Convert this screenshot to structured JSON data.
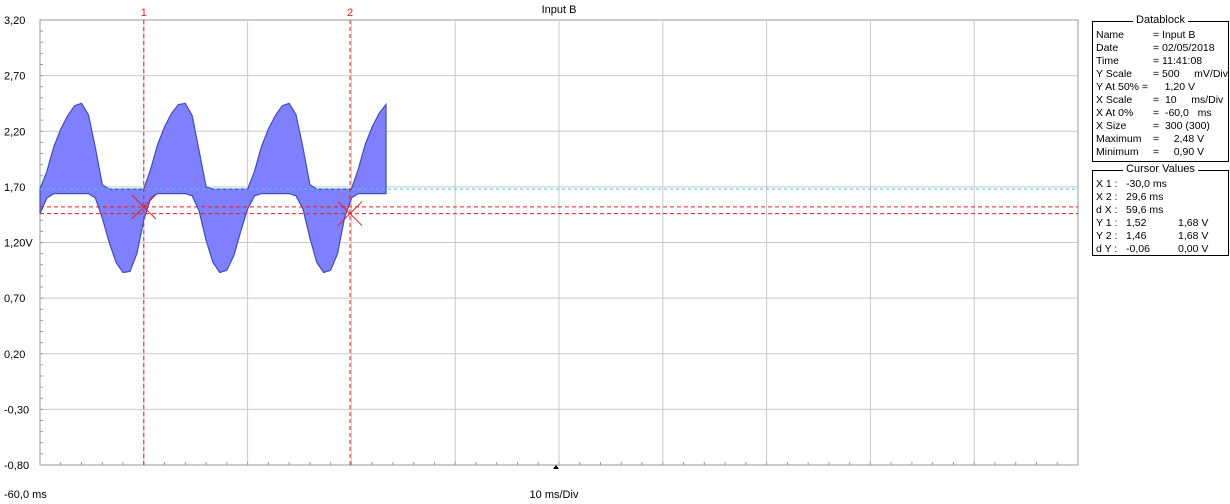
{
  "chart_data": {
    "type": "line",
    "title": "Input B",
    "ylim": [
      -0.8,
      3.2
    ],
    "yticks": [
      "3,20",
      "2,70",
      "2,20",
      "1,70",
      "1,20V",
      "0,70",
      "0,20",
      "-0,30",
      "-0,80"
    ],
    "x_range_ms": [
      -60.0,
      240.0
    ],
    "x_start_label": "-60,0 ms",
    "x_scale_label": "10 ms/Div",
    "grid": true,
    "series": [
      {
        "name": "Input B",
        "color": "#8080ff",
        "x_ms": [
          -60,
          -58,
          -56,
          -54,
          -52,
          -50,
          -48,
          -46,
          -44,
          -42,
          -40,
          -38,
          -36,
          -34,
          -32,
          -30,
          -28,
          -26,
          -24,
          -22,
          -20,
          -18,
          -16,
          -14,
          -12,
          -10,
          -8,
          -6,
          -4,
          -2,
          0,
          2,
          4,
          6,
          8,
          10,
          12,
          14,
          16,
          18,
          20,
          22,
          24,
          26,
          28,
          30,
          32,
          34,
          36,
          38,
          40
        ],
        "upper_v": [
          1.68,
          1.84,
          2.06,
          2.22,
          2.34,
          2.43,
          2.45,
          2.35,
          2.05,
          1.72,
          1.68,
          1.68,
          1.68,
          1.68,
          1.68,
          1.68,
          1.86,
          2.08,
          2.24,
          2.36,
          2.44,
          2.45,
          2.34,
          2.02,
          1.7,
          1.68,
          1.68,
          1.68,
          1.68,
          1.68,
          1.68,
          1.84,
          2.06,
          2.22,
          2.34,
          2.43,
          2.45,
          2.35,
          2.05,
          1.72,
          1.68,
          1.68,
          1.68,
          1.68,
          1.68,
          1.68,
          1.86,
          2.08,
          2.24,
          2.36,
          2.44
        ],
        "lower_v": [
          1.46,
          1.6,
          1.64,
          1.64,
          1.64,
          1.64,
          1.64,
          1.64,
          1.6,
          1.42,
          1.2,
          1.02,
          0.93,
          0.94,
          1.1,
          1.4,
          1.6,
          1.64,
          1.64,
          1.64,
          1.64,
          1.64,
          1.62,
          1.48,
          1.22,
          1.02,
          0.93,
          0.95,
          1.08,
          1.3,
          1.5,
          1.62,
          1.64,
          1.64,
          1.64,
          1.64,
          1.64,
          1.62,
          1.5,
          1.24,
          1.02,
          0.93,
          0.95,
          1.1,
          1.42,
          1.6,
          1.64,
          1.64,
          1.64,
          1.64,
          1.64
        ]
      }
    ],
    "cursors": [
      {
        "label": "1",
        "x_ms": -30.0,
        "y_v": 1.52
      },
      {
        "label": "2",
        "x_ms": 29.6,
        "y_v": 1.46
      }
    ]
  },
  "datablock": {
    "title": "Datablock",
    "rows": [
      {
        "k": "Name",
        "v": "= Input B"
      },
      {
        "k": "Date",
        "v": "= 02/05/2018"
      },
      {
        "k": "Time",
        "v": "= 11:41:08"
      },
      {
        "k": "Y Scale",
        "v": "= 500     mV/Div"
      },
      {
        "k": "Y At 50% =",
        "v": "    1,20 V"
      },
      {
        "k": "X Scale",
        "v": "=  10     ms/Div"
      },
      {
        "k": "X At 0%",
        "v": "=  -60,0   ms"
      },
      {
        "k": "X Size",
        "v": "=  300 (300)"
      },
      {
        "k": "Maximum",
        "v": "=     2,48 V"
      },
      {
        "k": "Minimum",
        "v": "=     0,90 V"
      }
    ]
  },
  "cursor_values": {
    "title": "Cursor Values",
    "rows": [
      {
        "k": "X 1 :",
        "a": "-30,0 ms",
        "b": ""
      },
      {
        "k": "X 2 :",
        "a": "29,6 ms",
        "b": ""
      },
      {
        "k": "d X :",
        "a": "59,6 ms",
        "b": ""
      },
      {
        "k": "Y 1 :",
        "a": "1,52",
        "b": "1,68 V"
      },
      {
        "k": "Y 2 :",
        "a": "1,46",
        "b": "1,68 V"
      },
      {
        "k": "d Y :",
        "a": "-0,06",
        "b": "0,00 V"
      }
    ]
  }
}
